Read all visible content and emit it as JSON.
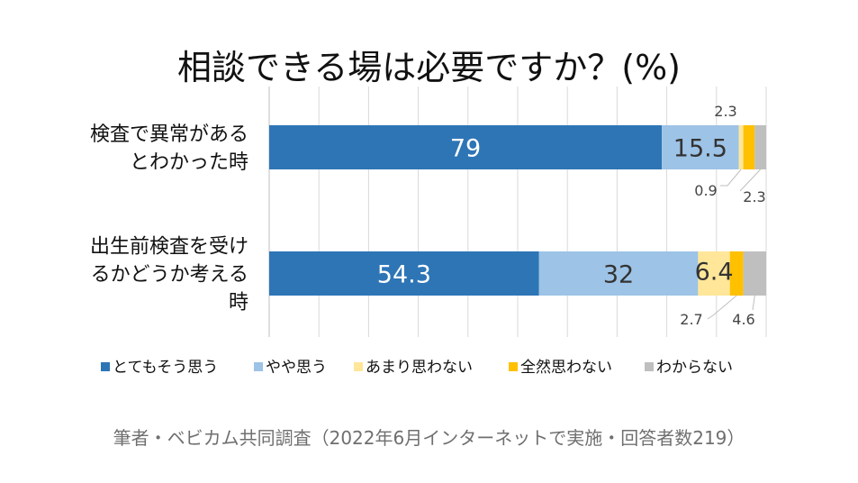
{
  "title": "相談できる場は必要ですか？(%)",
  "source": "筆者・ベビカム共同調査（2022年6月インターネットで実施・回答者数219）",
  "chart_data": {
    "type": "bar",
    "orientation": "horizontal",
    "stacked": true,
    "title": "相談できる場は必要ですか？(%)",
    "xlim": [
      0,
      100
    ],
    "grid": true,
    "legend_position": "bottom",
    "categories": [
      [
        "検査で異常がある",
        "とわかった時"
      ],
      [
        "出生前検査を受け",
        "るかどうか考える",
        "時"
      ]
    ],
    "series": [
      {
        "name": "とてもそう思う",
        "color": "#2E75B6",
        "values": [
          79,
          54.3
        ]
      },
      {
        "name": "やや思う",
        "color": "#9DC3E6",
        "values": [
          15.5,
          32
        ]
      },
      {
        "name": "あまり思わない",
        "color": "#FFE699",
        "values": [
          0.9,
          6.4
        ]
      },
      {
        "name": "全然思わない",
        "color": "#FFC000",
        "values": [
          2.3,
          2.7
        ]
      },
      {
        "name": "わからない",
        "color": "#BFBFBF",
        "values": [
          2.3,
          4.6
        ]
      }
    ],
    "labels": [
      [
        "79",
        "15.5",
        "0.9",
        "2.3",
        "2.3"
      ],
      [
        "54.3",
        "32",
        "6.4",
        "2.7",
        "4.6"
      ]
    ]
  }
}
